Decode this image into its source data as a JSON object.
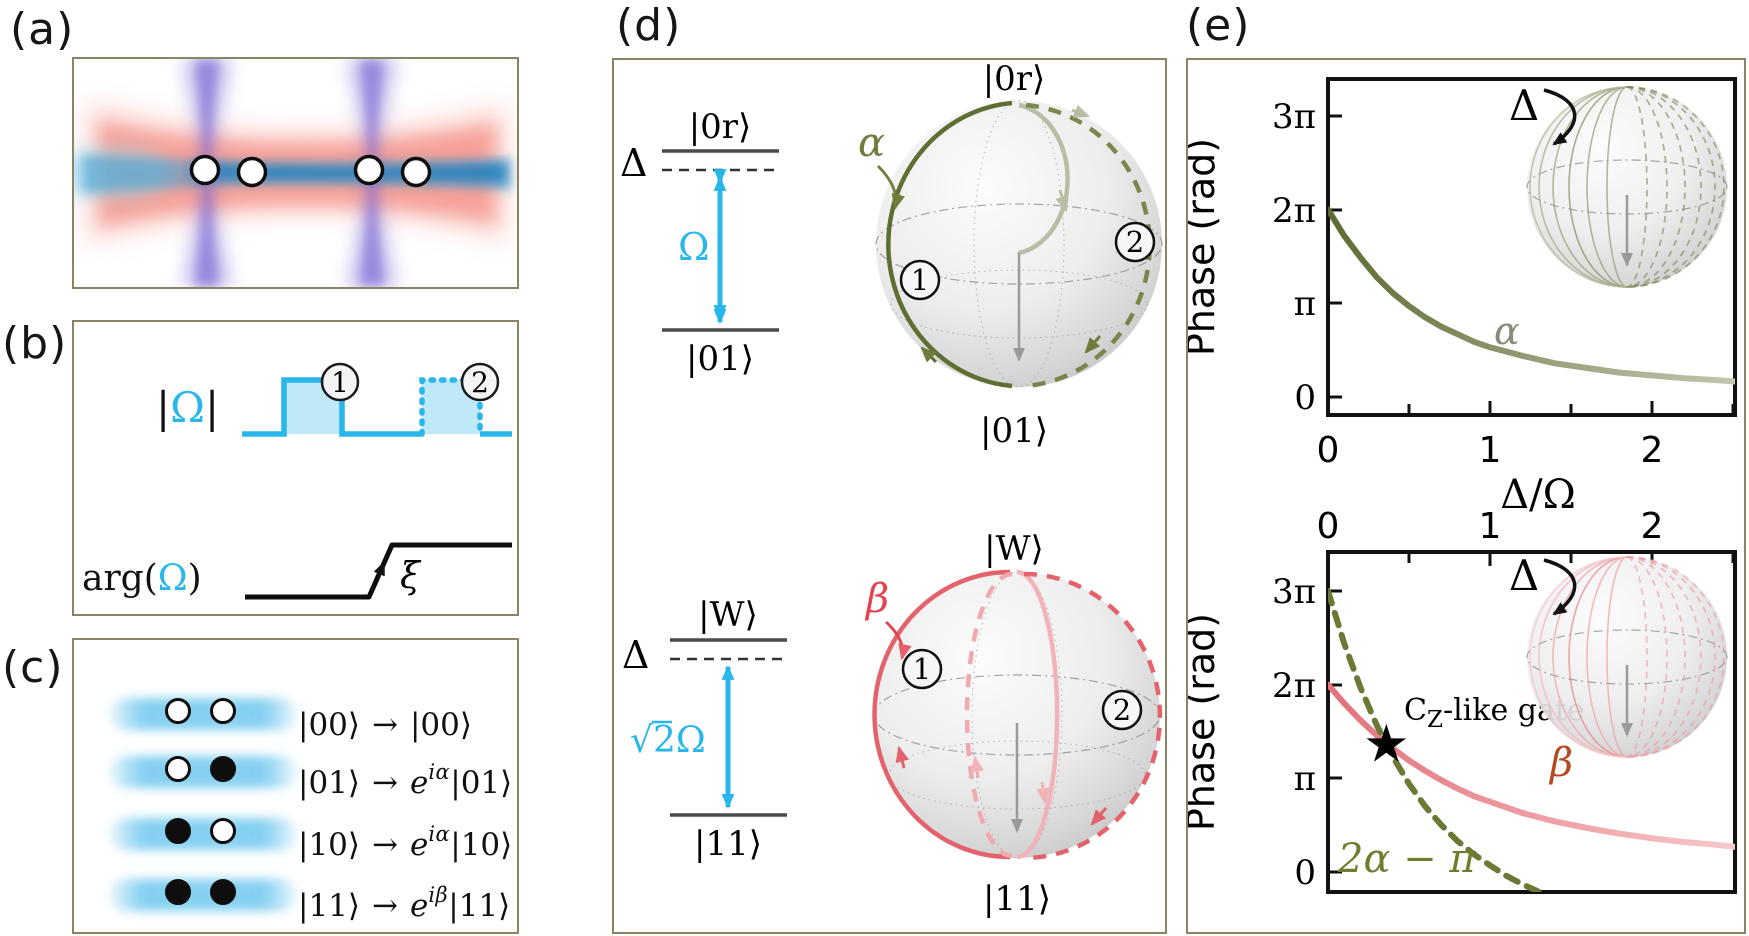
{
  "figure": {
    "description": "Multi-panel physics figure: Rydberg blockade CZ-like gate scheme"
  },
  "colors": {
    "accent_cyan": "#29b6ea",
    "pulse_fill": "#bfe9f8",
    "olive": "#6e7d3c",
    "olive_bright": "#6f7d2f",
    "olive_faded": "#b9bda4",
    "pink": "#e4626c",
    "pink_light": "#f09ba1",
    "beta_label_color": "#b5491f",
    "alpha_label_color": "#8a8a78",
    "panel_border": "#8a8464",
    "star": "#000000"
  },
  "panels": {
    "a": {
      "label": "(a)",
      "atoms": 4,
      "beams": [
        "red-horizontal-beam",
        "blue-horizontal-beam",
        "purple-tweezer-left",
        "purple-tweezer-right"
      ]
    },
    "b": {
      "label": "(b)",
      "amp": {
        "left": "|",
        "omega": "Ω",
        "right": "|"
      },
      "arg": {
        "pre": "arg(",
        "omega": "Ω",
        "post": ")"
      },
      "xi": "ξ",
      "marker1": "1",
      "marker2": "2"
    },
    "c": {
      "label": "(c)",
      "rows": [
        {
          "atoms": [
            "open",
            "open"
          ],
          "lhs": "|00⟩",
          "arrow": "→",
          "e": "",
          "exp": "",
          "ket": "|00⟩"
        },
        {
          "atoms": [
            "open",
            "filled"
          ],
          "lhs": "|01⟩",
          "arrow": "→",
          "e": "e",
          "exp": "iα",
          "ket": "|01⟩"
        },
        {
          "atoms": [
            "filled",
            "open"
          ],
          "lhs": "|10⟩",
          "arrow": "→",
          "e": "e",
          "exp": "iα",
          "ket": "|10⟩"
        },
        {
          "atoms": [
            "filled",
            "filled"
          ],
          "lhs": "|11⟩",
          "arrow": "→",
          "e": "e",
          "exp": "iβ",
          "ket": "|11⟩"
        }
      ]
    },
    "d": {
      "label": "(d)",
      "top": {
        "level_upper": "|0r⟩",
        "delta": "Δ",
        "rabi": "Ω",
        "level_lower": "|01⟩",
        "sphere_top": "|0r⟩",
        "sphere_bottom": "|01⟩",
        "traj": "α",
        "m1": "1",
        "m2": "2"
      },
      "bottom": {
        "level_upper": "|W⟩",
        "delta": "Δ",
        "rabi_sqrt": "√",
        "rabi_rad": "2",
        "rabi_omega": "Ω",
        "level_lower": "|11⟩",
        "sphere_top": "|W⟩",
        "sphere_bottom": "|11⟩",
        "traj": "β",
        "m1": "1",
        "m2": "2"
      }
    },
    "e": {
      "label": "(e)",
      "delta_top": "Δ",
      "delta_bottom": "Δ",
      "cz": {
        "c": "C",
        "sub": "Z",
        "rest": "-like gate"
      }
    }
  },
  "chart_data": [
    {
      "type": "line",
      "title": "",
      "xlabel": "Δ/Ω",
      "ylabel": "Phase (rad)",
      "x_ticks": [
        "0",
        "1",
        "2"
      ],
      "y_ticks": [
        "0",
        "π",
        "2π",
        "3π"
      ],
      "xlim": [
        0,
        2.51
      ],
      "ylim_pi": [
        -0.2,
        3.4
      ],
      "grid": false,
      "legend": "none",
      "series": [
        {
          "name": "α",
          "style": "solid",
          "color_start": "#5c6b31",
          "color_end": "#c3c7ae",
          "x": [
            0,
            0.1,
            0.2,
            0.3,
            0.4,
            0.5,
            0.6,
            0.7,
            0.8,
            0.9,
            1.0,
            1.2,
            1.4,
            1.6,
            1.8,
            2.0,
            2.2,
            2.4,
            2.55
          ],
          "y_pi": [
            2.0,
            1.72,
            1.49,
            1.28,
            1.11,
            0.97,
            0.85,
            0.75,
            0.67,
            0.59,
            0.53,
            0.44,
            0.36,
            0.31,
            0.26,
            0.23,
            0.2,
            0.18,
            0.16
          ]
        }
      ],
      "labels": [
        {
          "text": "α",
          "x": 1.07,
          "y_pi": 0.78,
          "color": "#8a8a78"
        }
      ],
      "inset": "bloch-sphere trajectory fan (olive) with Δ rotation arrow"
    },
    {
      "type": "line",
      "title": "",
      "xlabel": "Δ/Ω",
      "x_axis_position": "top",
      "ylabel": "Phase (rad)",
      "x_ticks": [
        "0",
        "1",
        "2"
      ],
      "y_ticks": [
        "0",
        "π",
        "2π",
        "3π"
      ],
      "xlim": [
        0,
        2.51
      ],
      "ylim_pi": [
        -0.2,
        3.4
      ],
      "grid": false,
      "series": [
        {
          "name": "β",
          "style": "solid",
          "color_start": "#e2737d",
          "color_end": "#f6c9cc",
          "x": [
            0,
            0.1,
            0.2,
            0.3,
            0.4,
            0.5,
            0.6,
            0.7,
            0.8,
            0.9,
            1.0,
            1.2,
            1.4,
            1.6,
            1.8,
            2.0,
            2.2,
            2.4,
            2.55
          ],
          "y_pi": [
            2.0,
            1.8,
            1.62,
            1.46,
            1.32,
            1.19,
            1.08,
            0.98,
            0.89,
            0.81,
            0.75,
            0.63,
            0.54,
            0.47,
            0.41,
            0.36,
            0.32,
            0.29,
            0.26
          ]
        },
        {
          "name": "2α − π",
          "style": "dashed",
          "color": "#6a7a35",
          "x": [
            0,
            0.1,
            0.2,
            0.3,
            0.4,
            0.5,
            0.6,
            0.7,
            0.8,
            0.9,
            1.0,
            1.1,
            1.2,
            1.3,
            1.32
          ],
          "y_pi": [
            3.0,
            2.44,
            1.97,
            1.57,
            1.23,
            0.94,
            0.7,
            0.5,
            0.33,
            0.19,
            0.07,
            -0.04,
            -0.13,
            -0.21,
            -0.23
          ]
        }
      ],
      "marker": {
        "type": "star",
        "x": 0.36,
        "y_pi": 1.37,
        "label": "CZ-like gate"
      },
      "labels": [
        {
          "text": "β",
          "x": 1.45,
          "y_pi": 1.2,
          "color": "#b5491f"
        },
        {
          "text": "2α − π",
          "x": 0.48,
          "y_pi": 0.22,
          "color": "#6a7a35"
        }
      ],
      "inset": "bloch-sphere trajectory fan (pink) with Δ rotation arrow"
    }
  ]
}
